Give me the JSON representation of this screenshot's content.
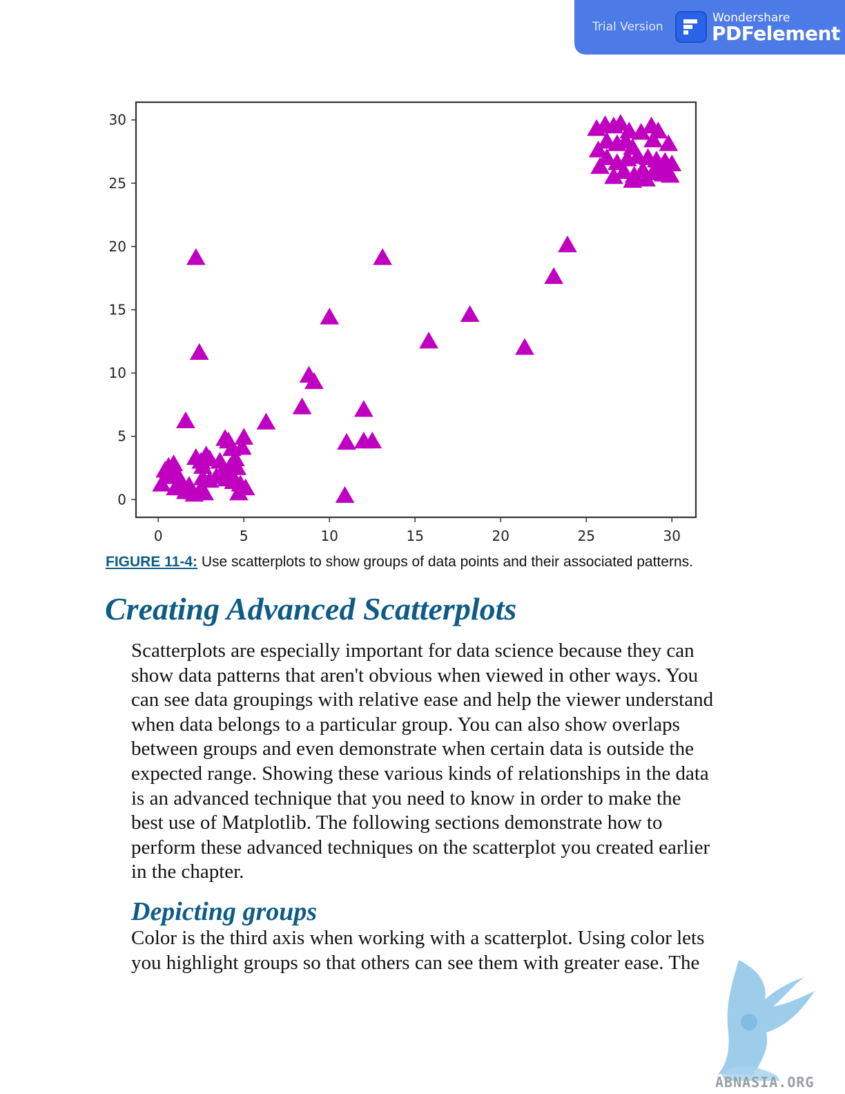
{
  "banner": {
    "trial_label": "Trial Version",
    "brand_small": "Wondershare",
    "brand_big": "PDFelement",
    "color": "#4c7ae6"
  },
  "chart_data": {
    "type": "scatter",
    "marker": "triangle",
    "color": "#c000c0",
    "xlim": [
      -1.3,
      31.4
    ],
    "ylim": [
      -1.4,
      31.4
    ],
    "xticks": [
      0,
      5,
      10,
      15,
      20,
      25,
      30
    ],
    "yticks": [
      0,
      5,
      10,
      15,
      20,
      25,
      30
    ],
    "xlabel": "",
    "ylabel": "",
    "grid": false,
    "points": [
      [
        0.2,
        1.2
      ],
      [
        0.4,
        2.3
      ],
      [
        0.6,
        2.6
      ],
      [
        0.5,
        1.8
      ],
      [
        0.8,
        2.0
      ],
      [
        0.9,
        2.8
      ],
      [
        1.1,
        1.9
      ],
      [
        1.3,
        1.5
      ],
      [
        1.0,
        0.9
      ],
      [
        1.4,
        0.9
      ],
      [
        1.6,
        0.6
      ],
      [
        1.8,
        1.1
      ],
      [
        2.0,
        0.6
      ],
      [
        2.1,
        0.4
      ],
      [
        2.4,
        0.6
      ],
      [
        2.7,
        0.5
      ],
      [
        1.6,
        6.2
      ],
      [
        2.2,
        19.1
      ],
      [
        2.4,
        11.6
      ],
      [
        2.2,
        3.3
      ],
      [
        2.5,
        3.0
      ],
      [
        2.8,
        3.5
      ],
      [
        2.6,
        2.6
      ],
      [
        3.0,
        3.2
      ],
      [
        2.6,
        1.7
      ],
      [
        3.0,
        1.5
      ],
      [
        3.4,
        1.8
      ],
      [
        3.8,
        2.3
      ],
      [
        3.6,
        3.0
      ],
      [
        3.9,
        4.8
      ],
      [
        4.1,
        4.6
      ],
      [
        4.3,
        4.0
      ],
      [
        4.5,
        3.2
      ],
      [
        4.2,
        2.6
      ],
      [
        4.6,
        2.5
      ],
      [
        4.0,
        1.6
      ],
      [
        4.4,
        1.4
      ],
      [
        4.8,
        1.2
      ],
      [
        4.7,
        0.5
      ],
      [
        4.9,
        4.1
      ],
      [
        5.0,
        4.9
      ],
      [
        5.1,
        0.9
      ],
      [
        4.3,
        1.9
      ],
      [
        6.3,
        6.1
      ],
      [
        8.4,
        7.3
      ],
      [
        8.8,
        9.8
      ],
      [
        9.1,
        9.3
      ],
      [
        10.0,
        14.4
      ],
      [
        10.9,
        0.3
      ],
      [
        11.0,
        4.5
      ],
      [
        12.0,
        7.1
      ],
      [
        12.0,
        4.6
      ],
      [
        12.5,
        4.6
      ],
      [
        13.1,
        19.1
      ],
      [
        15.8,
        12.5
      ],
      [
        18.2,
        14.6
      ],
      [
        21.4,
        12.0
      ],
      [
        23.1,
        17.6
      ],
      [
        23.9,
        20.1
      ],
      [
        25.6,
        29.3
      ],
      [
        26.1,
        29.6
      ],
      [
        26.6,
        29.5
      ],
      [
        27.0,
        29.7
      ],
      [
        27.5,
        29.1
      ],
      [
        26.2,
        28.3
      ],
      [
        26.8,
        28.1
      ],
      [
        27.3,
        28.3
      ],
      [
        27.7,
        27.8
      ],
      [
        28.2,
        29.0
      ],
      [
        28.8,
        29.5
      ],
      [
        29.2,
        29.1
      ],
      [
        28.9,
        28.4
      ],
      [
        29.8,
        28.1
      ],
      [
        25.7,
        27.6
      ],
      [
        26.2,
        27.0
      ],
      [
        26.8,
        26.6
      ],
      [
        27.4,
        26.9
      ],
      [
        28.0,
        27.1
      ],
      [
        28.6,
        27.0
      ],
      [
        29.1,
        26.8
      ],
      [
        29.6,
        26.7
      ],
      [
        30.0,
        26.5
      ],
      [
        25.8,
        26.3
      ],
      [
        26.6,
        25.5
      ],
      [
        27.2,
        25.9
      ],
      [
        27.8,
        25.6
      ],
      [
        28.3,
        26.0
      ],
      [
        28.9,
        25.8
      ],
      [
        29.4,
        26.3
      ],
      [
        29.9,
        25.6
      ],
      [
        27.7,
        25.2
      ],
      [
        28.5,
        25.3
      ],
      [
        29.5,
        25.7
      ]
    ]
  },
  "caption": {
    "figure_label": "FIGURE 11-4:",
    "text": " Use scatterplots to show groups of data points and their associated patterns."
  },
  "heading": "Creating Advanced Scatterplots",
  "paragraph_lines": [
    "Scatterplots are especially important for data science because they can",
    "show data patterns that aren't obvious when viewed in other ways. You",
    "can see data groupings with relative ease and help the viewer understand",
    "when data belongs to a particular group. You can also show overlaps",
    "between groups and even demonstrate when certain data is outside the",
    "expected range. Showing these various kinds of relationships in the data",
    "is an advanced technique that you need to know in order to make the",
    "best use of Matplotlib. The following sections demonstrate how to",
    "perform these advanced techniques on the scatterplot you created earlier",
    "in the chapter."
  ],
  "subheading": "Depicting groups",
  "paragraph2_lines": [
    "Color is the third axis when working with a scatterplot. Using color lets",
    "you highlight groups so that others can see them with greater ease. The"
  ],
  "watermark_text": "ABNASIA.ORG",
  "accent_color": "#0e5b86"
}
